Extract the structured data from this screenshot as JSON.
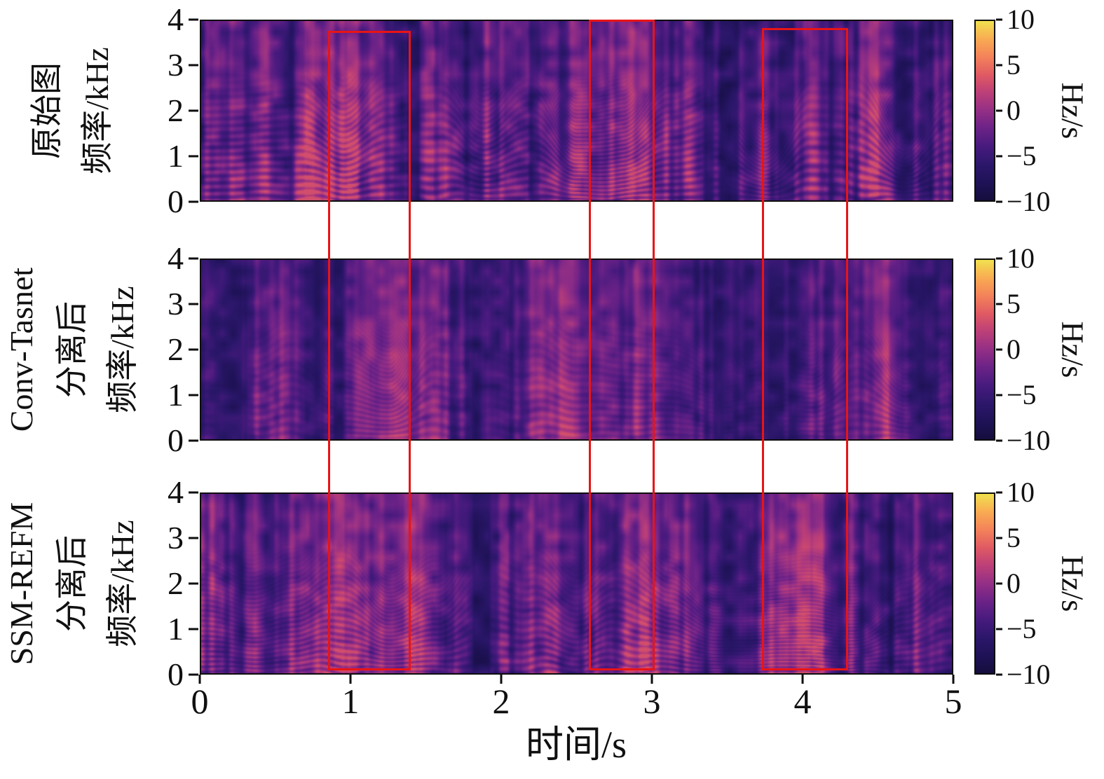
{
  "figure": {
    "xlabel": "时间/s",
    "x_ticks": [
      "0",
      "1",
      "2",
      "3",
      "4",
      "5"
    ],
    "colorbar": {
      "label": "Hz/s",
      "ticks": [
        "10",
        "5",
        "0",
        "−5",
        "−10"
      ]
    },
    "panels": [
      {
        "name": "original",
        "label_lines": [
          "原始图",
          "频率/kHz"
        ],
        "y_ticks": [
          "4",
          "3",
          "2",
          "1",
          "0"
        ]
      },
      {
        "name": "conv-tasnet",
        "label_lines": [
          "Conv-Tasnet",
          "分离后",
          "频率/kHz"
        ],
        "y_ticks": [
          "4",
          "3",
          "2",
          "1",
          "0"
        ]
      },
      {
        "name": "ssm-refm",
        "label_lines": [
          "SSM-REFM",
          "分离后",
          "频率/kHz"
        ],
        "y_ticks": [
          "4",
          "3",
          "2",
          "1",
          "0"
        ]
      }
    ]
  },
  "chart_data": {
    "type": "heatmap",
    "title": "",
    "xlabel": "时间/s",
    "ylabel": "频率/kHz",
    "x_range": [
      0,
      5
    ],
    "y_range": [
      0,
      4
    ],
    "grid": false,
    "subplots": [
      {
        "row_label": "原始图 频率/kHz"
      },
      {
        "row_label": "Conv-Tasnet 分离后 频率/kHz"
      },
      {
        "row_label": "SSM-REFM 分离后 频率/kHz"
      }
    ],
    "colorbar": {
      "label": "Hz/s",
      "range": [
        -10,
        10
      ],
      "tick_values": [
        10,
        5,
        0,
        -5,
        -10
      ]
    },
    "colormap_stops": [
      "#150e3d",
      "#1f1257",
      "#2c176b",
      "#471a7e",
      "#6b2287",
      "#942f86",
      "#bc3f78",
      "#e05a63",
      "#f4825a",
      "#f9ab52",
      "#f0e14f"
    ],
    "highlight_boxes": {
      "color": "#e81416",
      "time_intervals": [
        [
          0.85,
          1.4
        ],
        [
          2.58,
          3.02
        ],
        [
          3.73,
          4.3
        ]
      ]
    }
  }
}
